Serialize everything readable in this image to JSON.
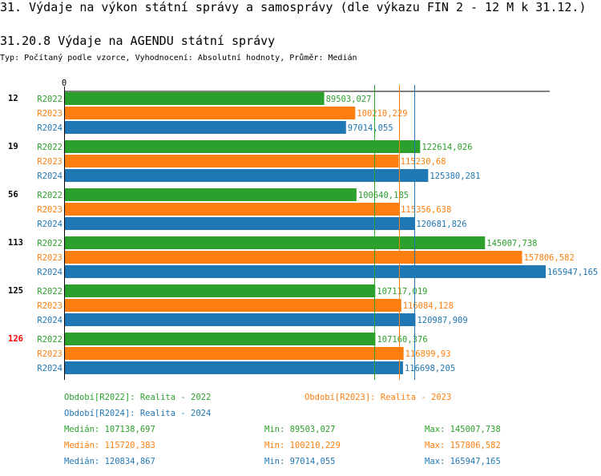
{
  "title": "31. Výdaje na výkon státní správy a samosprávy (dle výkazu FIN 2 - 12 M k 31.12.)",
  "subtitle": "31.20.8 Výdaje na AGENDU státní správy",
  "info": "Typ: Počítaný podle vzorce, Vyhodnocení: Absolutní hodnoty, Průměr: Medián",
  "chart_data": {
    "type": "bar",
    "orientation": "horizontal",
    "axis_zero_label": "0",
    "xlim": [
      0,
      165947.165
    ],
    "colors": {
      "R2022": "#2ca02c",
      "R2023": "#ff7f0e",
      "R2024": "#1f77b4"
    },
    "highlight_color": "#ff0000",
    "groups": [
      {
        "label": "12",
        "highlight": false,
        "bars": [
          {
            "series": "R2022",
            "value": 89503.027,
            "label": "89503,027"
          },
          {
            "series": "R2023",
            "value": 100210.229,
            "label": "100210,229"
          },
          {
            "series": "R2024",
            "value": 97014.055,
            "label": "97014,055"
          }
        ]
      },
      {
        "label": "19",
        "highlight": false,
        "bars": [
          {
            "series": "R2022",
            "value": 122614.026,
            "label": "122614,026"
          },
          {
            "series": "R2023",
            "value": 115230.68,
            "label": "115230,68"
          },
          {
            "series": "R2024",
            "value": 125380.281,
            "label": "125380,281"
          }
        ]
      },
      {
        "label": "56",
        "highlight": false,
        "bars": [
          {
            "series": "R2022",
            "value": 100640.185,
            "label": "100640,185"
          },
          {
            "series": "R2023",
            "value": 115356.638,
            "label": "115356,638"
          },
          {
            "series": "R2024",
            "value": 120681.826,
            "label": "120681,826"
          }
        ]
      },
      {
        "label": "113",
        "highlight": false,
        "bars": [
          {
            "series": "R2022",
            "value": 145007.738,
            "label": "145007,738"
          },
          {
            "series": "R2023",
            "value": 157806.582,
            "label": "157806,582"
          },
          {
            "series": "R2024",
            "value": 165947.165,
            "label": "165947,165"
          }
        ]
      },
      {
        "label": "125",
        "highlight": false,
        "bars": [
          {
            "series": "R2022",
            "value": 107117.019,
            "label": "107117,019"
          },
          {
            "series": "R2023",
            "value": 116084.128,
            "label": "116084,128"
          },
          {
            "series": "R2024",
            "value": 120987.909,
            "label": "120987,909"
          }
        ]
      },
      {
        "label": "126",
        "highlight": true,
        "bars": [
          {
            "series": "R2022",
            "value": 107160.376,
            "label": "107160,376"
          },
          {
            "series": "R2023",
            "value": 116899.93,
            "label": "116899,93"
          },
          {
            "series": "R2024",
            "value": 116698.205,
            "label": "116698,205"
          }
        ]
      }
    ],
    "medians": [
      {
        "series": "R2022",
        "value": 107138.697
      },
      {
        "series": "R2023",
        "value": 115720.383
      },
      {
        "series": "R2024",
        "value": 120834.867
      }
    ],
    "legend": [
      {
        "series": "R2022",
        "text": "Období[R2022]: Realita - 2022"
      },
      {
        "series": "R2023",
        "text": "Období[R2023]: Realita - 2023"
      },
      {
        "series": "R2024",
        "text": "Období[R2024]: Realita - 2024"
      }
    ],
    "stats": [
      {
        "series": "R2022",
        "median": "Medián: 107138,697",
        "min": "Min: 89503,027",
        "max": "Max: 145007,738"
      },
      {
        "series": "R2023",
        "median": "Medián: 115720,383",
        "min": "Min: 100210,229",
        "max": "Max: 157806,582"
      },
      {
        "series": "R2024",
        "median": "Medián: 120834,867",
        "min": "Min: 97014,055",
        "max": "Max: 165947,165"
      }
    ]
  }
}
